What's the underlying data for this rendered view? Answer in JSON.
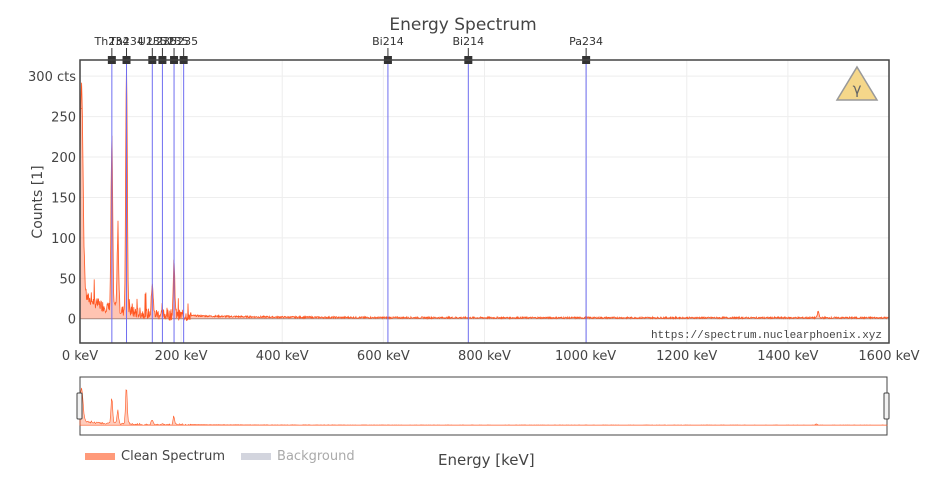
{
  "chart_data": {
    "type": "line",
    "title": "Energy Spectrum",
    "xlabel": "Energy [keV]",
    "ylabel": "Counts [1]",
    "xlim": [
      0,
      1600
    ],
    "ylim": [
      -30,
      320
    ],
    "x_ticks": [
      0,
      200,
      400,
      600,
      800,
      1000,
      1200,
      1400,
      1600
    ],
    "x_tick_labels": [
      "0 keV",
      "200 keV",
      "400 keV",
      "600 keV",
      "800 keV",
      "1000 keV",
      "1200 keV",
      "1400 keV",
      "1600 keV"
    ],
    "y_ticks": [
      0,
      50,
      100,
      150,
      200,
      250,
      300
    ],
    "y_tick_labels": [
      "0",
      "50",
      "100",
      "150",
      "200",
      "250",
      "300 cts"
    ],
    "grid": true,
    "legend_position": "bottom-left",
    "watermark": "https://spectrum.nuclearphoenix.xyz",
    "series": [
      {
        "name": "Clean Spectrum",
        "color": "#ff5722",
        "visible": true,
        "peaks": [
          {
            "x": 3,
            "y": 260
          },
          {
            "x": 63,
            "y": 210
          },
          {
            "x": 75,
            "y": 95
          },
          {
            "x": 92,
            "y": 305
          },
          {
            "x": 143,
            "y": 40
          },
          {
            "x": 186,
            "y": 60
          },
          {
            "x": 1460,
            "y": 8
          }
        ]
      },
      {
        "name": "Background",
        "color": "#d3d5de",
        "visible": false
      }
    ],
    "isotope_markers": [
      {
        "label": "Th234",
        "x": 63
      },
      {
        "label": "Th234",
        "x": 92
      },
      {
        "label": "U235",
        "x": 143
      },
      {
        "label": "U235",
        "x": 163
      },
      {
        "label": "U235",
        "x": 186
      },
      {
        "label": "U235",
        "x": 205
      },
      {
        "label": "Bi214",
        "x": 609
      },
      {
        "label": "Bi214",
        "x": 768
      },
      {
        "label": "Pa234",
        "x": 1001
      }
    ]
  },
  "logo": {
    "symbol": "γ",
    "color": "#f5d78a"
  }
}
